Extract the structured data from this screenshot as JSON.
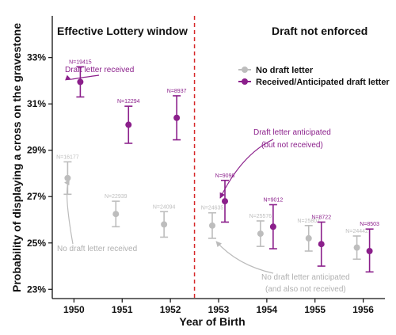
{
  "chart_data": {
    "type": "scatter",
    "title": "",
    "xlabel": "Year of Birth",
    "ylabel": "Probability of displaying a cross on the gravestone",
    "x_ticks": [
      "1950",
      "1951",
      "1952",
      "1953",
      "1954",
      "1955",
      "1956"
    ],
    "y_ticks": [
      "23%",
      "25%",
      "27%",
      "29%",
      "31%",
      "33%"
    ],
    "ylim": [
      22.6,
      34.8
    ],
    "xlim": [
      1949.55,
      1956.45
    ],
    "regions": [
      {
        "label": "Effective Lottery window"
      },
      {
        "label": "Draft not enforced"
      }
    ],
    "divider_x": 1952.5,
    "colors": {
      "no_draft": "#bdbdbd",
      "received": "#8b1f8b",
      "divider": "#d62728"
    },
    "legend": {
      "position": "top-right",
      "entries": [
        "No draft letter",
        "Received/Anticipated draft letter"
      ]
    },
    "series": [
      {
        "name": "No draft letter",
        "points": [
          {
            "x": 1950,
            "y": 27.8,
            "lo": 27.1,
            "hi": 28.5,
            "n": "N=16177"
          },
          {
            "x": 1951,
            "y": 26.25,
            "lo": 25.7,
            "hi": 26.8,
            "n": "N=22939"
          },
          {
            "x": 1952,
            "y": 25.8,
            "lo": 25.25,
            "hi": 26.35,
            "n": "N=24094"
          },
          {
            "x": 1953,
            "y": 25.75,
            "lo": 25.2,
            "hi": 26.3,
            "n": "N=24635"
          },
          {
            "x": 1954,
            "y": 25.4,
            "lo": 24.85,
            "hi": 25.95,
            "n": "N=25576"
          },
          {
            "x": 1955,
            "y": 25.2,
            "lo": 24.65,
            "hi": 25.75,
            "n": "N=25807"
          },
          {
            "x": 1956,
            "y": 24.8,
            "lo": 24.3,
            "hi": 25.3,
            "n": "N=24442"
          }
        ]
      },
      {
        "name": "Received/Anticipated draft letter",
        "points": [
          {
            "x": 1950,
            "y": 31.95,
            "lo": 31.3,
            "hi": 32.6,
            "n": "N=19415"
          },
          {
            "x": 1951,
            "y": 30.1,
            "lo": 29.3,
            "hi": 30.9,
            "n": "N=12294"
          },
          {
            "x": 1952,
            "y": 30.4,
            "lo": 29.45,
            "hi": 31.35,
            "n": "N=8937"
          },
          {
            "x": 1953,
            "y": 26.8,
            "lo": 25.9,
            "hi": 27.7,
            "n": "N=9098"
          },
          {
            "x": 1954,
            "y": 25.7,
            "lo": 24.75,
            "hi": 26.65,
            "n": "N=9012"
          },
          {
            "x": 1955,
            "y": 24.95,
            "lo": 24.0,
            "hi": 25.9,
            "n": "N=8722"
          },
          {
            "x": 1956,
            "y": 24.65,
            "lo": 23.75,
            "hi": 25.6,
            "n": "N=8503"
          }
        ]
      }
    ],
    "annotations": [
      {
        "id": "draft_received",
        "text": "Draft letter received"
      },
      {
        "id": "anticipated_1",
        "text": "Draft letter anticipated"
      },
      {
        "id": "anticipated_2",
        "text": "(but not received)"
      },
      {
        "id": "no_draft",
        "text": "No draft letter received"
      },
      {
        "id": "no_anticipated_1",
        "text": "No draft letter anticipated"
      },
      {
        "id": "no_anticipated_2",
        "text": "(and also not received)"
      }
    ]
  }
}
